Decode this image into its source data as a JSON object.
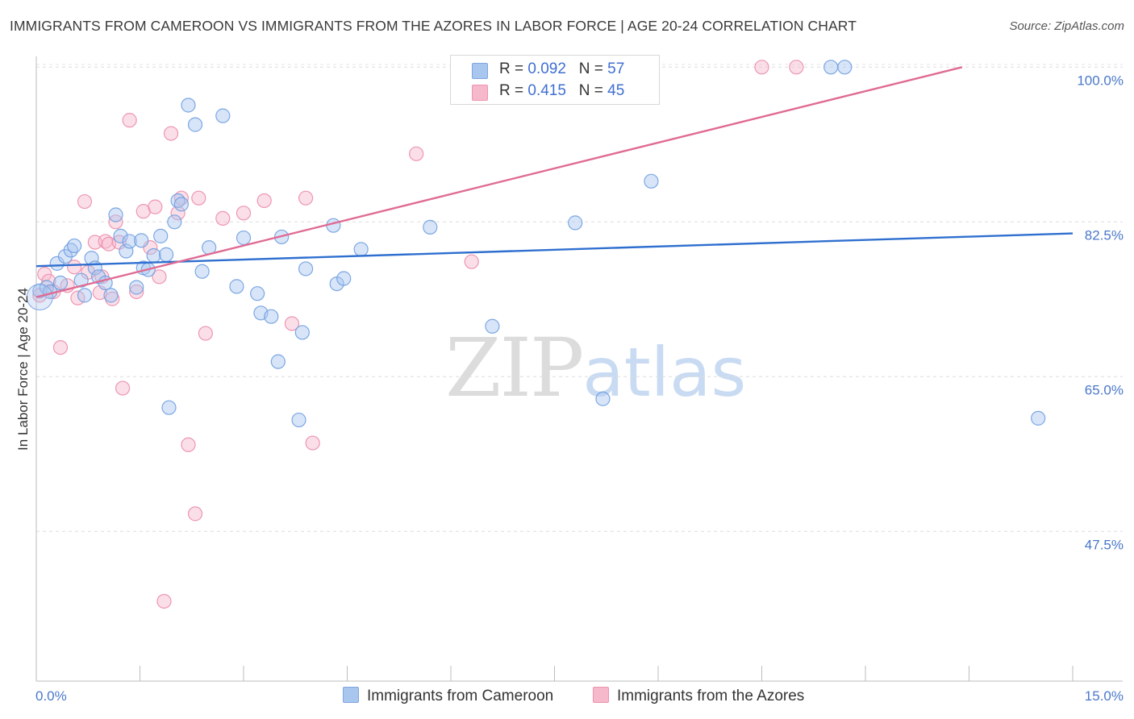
{
  "title": "IMMIGRANTS FROM CAMEROON VS IMMIGRANTS FROM THE AZORES IN LABOR FORCE | AGE 20-24 CORRELATION CHART",
  "source": "Source: ZipAtlas.com",
  "watermark": {
    "zip": "ZIP",
    "atlas": "atlas"
  },
  "legend": {
    "r_label": "R =",
    "n_label": "N =",
    "rows": [
      {
        "r": "0.092",
        "n": "57",
        "color": "#a9c6ef"
      },
      {
        "r": "0.415",
        "n": "45",
        "color": "#f6b8cb"
      }
    ]
  },
  "bottom_legend": [
    {
      "label": "Immigrants from Cameroon",
      "color": "#a9c6ef"
    },
    {
      "label": "Immigrants from the Azores",
      "color": "#f6b8cb"
    }
  ],
  "chart_data": {
    "type": "scatter",
    "title": "IMMIGRANTS FROM CAMEROON VS IMMIGRANTS FROM THE AZORES IN LABOR FORCE | AGE 20-24 CORRELATION CHART",
    "xlabel": "",
    "ylabel": "In Labor Force | Age 20-24",
    "xlim": [
      0,
      15
    ],
    "ylim": [
      32.5,
      101.5
    ],
    "x_tick_labels": [
      "0.0%",
      "15.0%"
    ],
    "y_ticks": [
      47.5,
      65.0,
      82.5,
      100.0
    ],
    "y_tick_labels": [
      "47.5%",
      "65.0%",
      "82.5%",
      "100.0%"
    ],
    "grid": true,
    "colors": {
      "cameroon": "#4f86d6",
      "azores": "#e87099"
    },
    "series": [
      {
        "name": "Immigrants from Cameroon",
        "color": "#a9c6ef",
        "trend": {
          "x": [
            0,
            15
          ],
          "y": [
            77.5,
            81.2
          ],
          "color": "#2f6fcf"
        },
        "points": [
          [
            0.05,
            74.7
          ],
          [
            0.15,
            75.1
          ],
          [
            0.2,
            74.6
          ],
          [
            0.3,
            77.8
          ],
          [
            0.35,
            75.6
          ],
          [
            0.42,
            78.6
          ],
          [
            0.5,
            79.3
          ],
          [
            0.55,
            79.8
          ],
          [
            0.65,
            75.9
          ],
          [
            0.7,
            74.2
          ],
          [
            0.8,
            78.4
          ],
          [
            0.85,
            77.3
          ],
          [
            0.9,
            76.3
          ],
          [
            1.0,
            75.6
          ],
          [
            1.08,
            74.2
          ],
          [
            1.15,
            83.3
          ],
          [
            1.22,
            80.9
          ],
          [
            1.3,
            79.2
          ],
          [
            1.35,
            80.3
          ],
          [
            1.45,
            75.1
          ],
          [
            1.52,
            80.4
          ],
          [
            1.55,
            77.3
          ],
          [
            1.62,
            77.1
          ],
          [
            1.7,
            78.7
          ],
          [
            1.8,
            80.9
          ],
          [
            1.88,
            78.8
          ],
          [
            1.92,
            61.5
          ],
          [
            2.0,
            82.5
          ],
          [
            2.05,
            84.9
          ],
          [
            2.1,
            84.5
          ],
          [
            2.2,
            95.7
          ],
          [
            2.3,
            93.5
          ],
          [
            2.4,
            76.9
          ],
          [
            2.5,
            79.6
          ],
          [
            2.7,
            94.5
          ],
          [
            2.9,
            75.2
          ],
          [
            3.0,
            80.7
          ],
          [
            3.2,
            74.4
          ],
          [
            3.25,
            72.2
          ],
          [
            3.4,
            71.8
          ],
          [
            3.5,
            66.7
          ],
          [
            3.55,
            80.8
          ],
          [
            3.8,
            60.1
          ],
          [
            3.85,
            70.0
          ],
          [
            3.9,
            77.2
          ],
          [
            4.3,
            82.1
          ],
          [
            4.35,
            75.5
          ],
          [
            4.45,
            76.1
          ],
          [
            4.7,
            79.4
          ],
          [
            5.7,
            81.9
          ],
          [
            6.6,
            70.7
          ],
          [
            7.8,
            82.4
          ],
          [
            8.2,
            62.5
          ],
          [
            8.9,
            87.1
          ],
          [
            11.5,
            100.0
          ],
          [
            11.7,
            100.0
          ],
          [
            14.5,
            60.3
          ]
        ]
      },
      {
        "name": "Immigrants from the Azores",
        "color": "#f6b8cb",
        "trend": {
          "x": [
            0,
            13.4
          ],
          "y": [
            74.0,
            100.0
          ],
          "color": "#e06b93"
        },
        "points": [
          [
            0.05,
            74.2
          ],
          [
            0.12,
            76.6
          ],
          [
            0.18,
            75.8
          ],
          [
            0.25,
            74.6
          ],
          [
            0.35,
            68.3
          ],
          [
            0.45,
            75.3
          ],
          [
            0.55,
            77.4
          ],
          [
            0.6,
            73.9
          ],
          [
            0.7,
            84.8
          ],
          [
            0.75,
            76.8
          ],
          [
            0.85,
            80.2
          ],
          [
            0.92,
            74.5
          ],
          [
            0.95,
            76.3
          ],
          [
            1.0,
            80.3
          ],
          [
            1.05,
            80.0
          ],
          [
            1.1,
            73.8
          ],
          [
            1.15,
            82.5
          ],
          [
            1.2,
            80.2
          ],
          [
            1.25,
            63.7
          ],
          [
            1.35,
            94.0
          ],
          [
            1.45,
            74.6
          ],
          [
            1.55,
            83.7
          ],
          [
            1.65,
            79.6
          ],
          [
            1.72,
            84.2
          ],
          [
            1.78,
            76.3
          ],
          [
            1.85,
            39.6
          ],
          [
            1.95,
            92.5
          ],
          [
            2.05,
            83.5
          ],
          [
            2.1,
            85.2
          ],
          [
            2.2,
            57.3
          ],
          [
            2.3,
            49.5
          ],
          [
            2.35,
            85.2
          ],
          [
            2.45,
            69.9
          ],
          [
            2.7,
            82.9
          ],
          [
            3.0,
            83.5
          ],
          [
            3.3,
            84.9
          ],
          [
            3.7,
            71.0
          ],
          [
            3.9,
            85.2
          ],
          [
            4.0,
            57.5
          ],
          [
            5.5,
            90.2
          ],
          [
            6.3,
            78.0
          ],
          [
            7.3,
            100.0
          ],
          [
            8.7,
            100.0
          ],
          [
            10.5,
            100.0
          ],
          [
            11.0,
            100.0
          ]
        ]
      }
    ]
  }
}
